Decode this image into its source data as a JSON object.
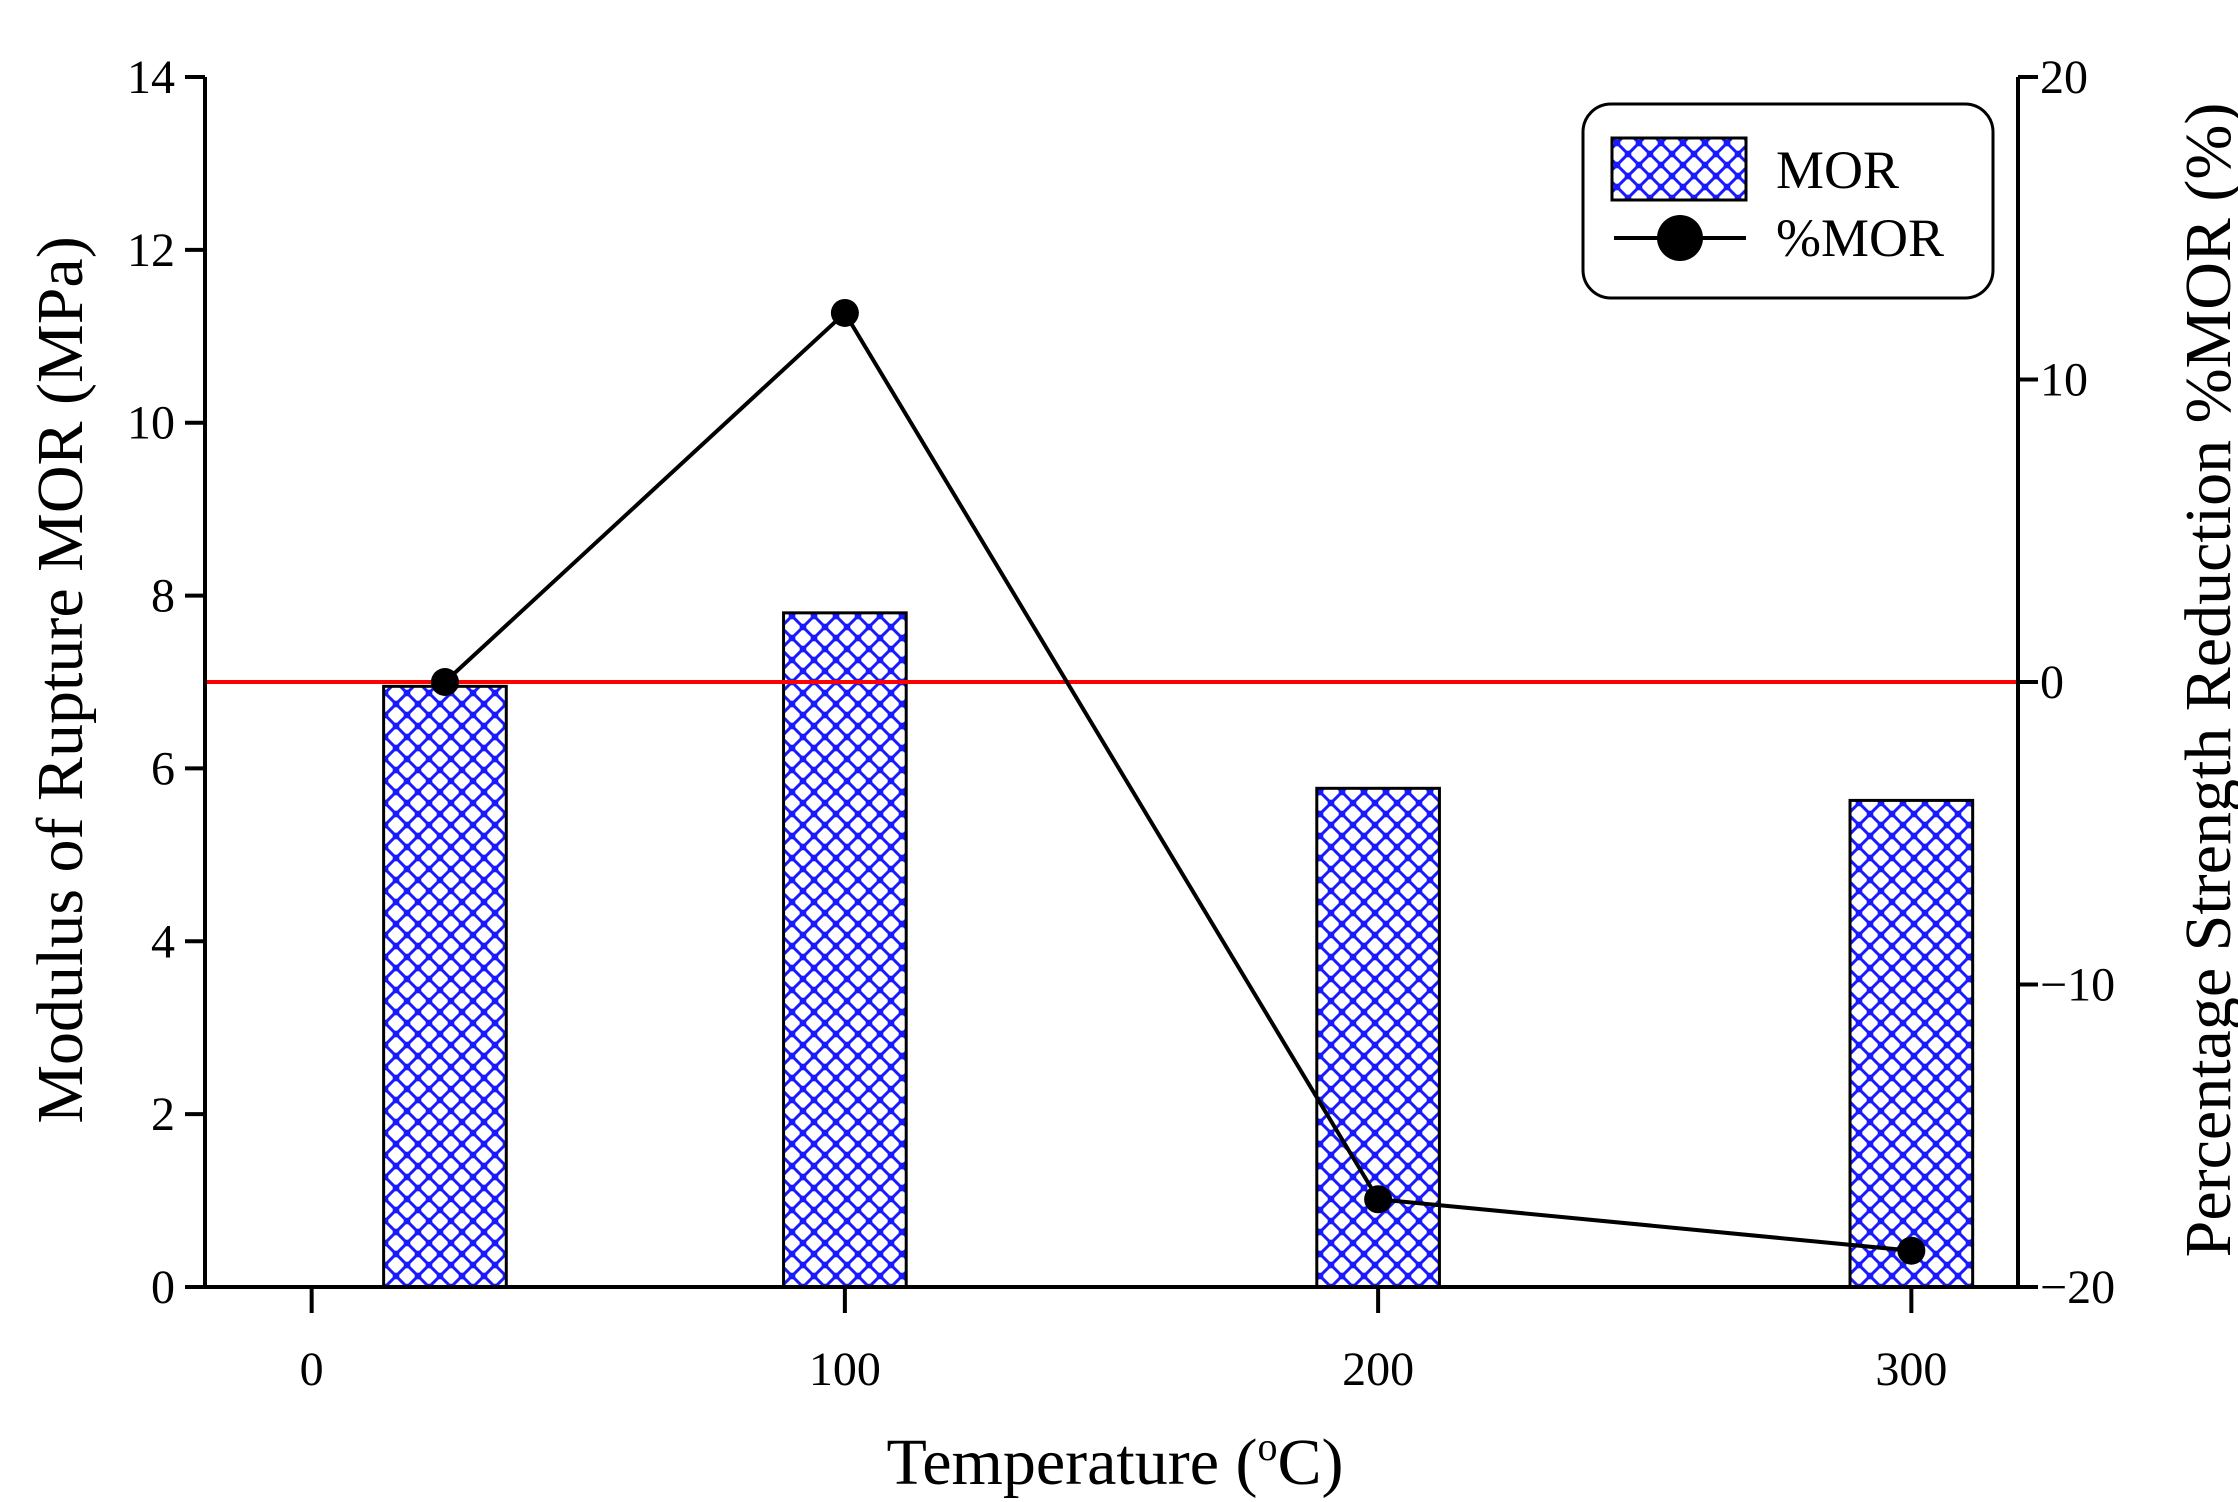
{
  "chart_data": {
    "type": "bar+line",
    "title": "",
    "xlabel": {
      "main": "Temperature (",
      "sup": "o",
      "unit": "C)"
    },
    "ylabel_left": "Modulus of Rupture MOR (MPa)",
    "ylabel_right": "Percentage Strength Reduction %MOR (%)",
    "x_ticks": [
      0,
      100,
      200,
      300
    ],
    "xlim": [
      -20,
      320
    ],
    "ylim_left": [
      0,
      14
    ],
    "y_ticks_left": [
      0,
      2,
      4,
      6,
      8,
      10,
      12,
      14
    ],
    "ylim_right": [
      -20,
      20
    ],
    "y_ticks_right": [
      -20,
      -10,
      0,
      10,
      20
    ],
    "reference_line": {
      "axis": "right",
      "value": 0,
      "color": "#ff0000"
    },
    "series": [
      {
        "name": "MOR",
        "type": "bar",
        "axis": "left",
        "pattern": "blue crosshatch",
        "color": "#1a1aff",
        "x": [
          25,
          100,
          200,
          300
        ],
        "values": [
          6.95,
          7.8,
          5.77,
          5.63
        ],
        "bar_width_x": 23
      },
      {
        "name": "%MOR",
        "type": "line",
        "axis": "right",
        "color": "#000000",
        "marker": "filled-circle",
        "x": [
          25,
          100,
          200,
          300
        ],
        "values": [
          0,
          12.2,
          -17.1,
          -18.8
        ]
      }
    ],
    "legend": {
      "position": "top-right",
      "entries": [
        "MOR",
        "%MOR"
      ]
    }
  }
}
